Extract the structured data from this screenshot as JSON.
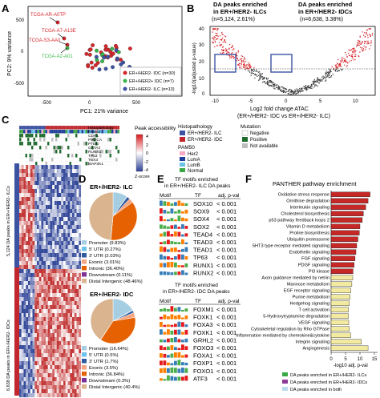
{
  "panel_letters": [
    "A",
    "B",
    "C",
    "D",
    "E",
    "F"
  ],
  "panelA": {
    "xlabel": "PC1: 21% variance",
    "ylabel": "PC2: 9% variance",
    "xticks": [
      "-500",
      "0",
      "500"
    ],
    "yticks": [
      "-500",
      "0",
      "500"
    ],
    "annotations": [
      "TCGA-AR-A0TP",
      "TCGA-A7-A13E",
      "TCGA-S3-AA0",
      "TCGA-A2-A01"
    ],
    "legend": [
      {
        "label": "ER+/HER2- IDC (n=30)",
        "color": "#d7262b"
      },
      {
        "label": "ER+/HER2+ IDC (n=7)",
        "color": "#3ab54a"
      },
      {
        "label": "ER+/HER2- ILC (n=13)",
        "color": "#3c52a3"
      }
    ]
  },
  "panelB": {
    "title": "DA peaks enriched",
    "sub_left": "in ER+/HER2- ILCs",
    "sub_right": "in ER+/HER2- IDCs",
    "count_left": "(n=5,124, 2.61%)",
    "count_right": "(n=6,638, 3.38%)",
    "ylabel": "-log10(adjusted p-value)",
    "xlabel1": "Log2 fold change ATAC",
    "xlabel2": "(ER+/HER2- IDC vs ER+/HER2- ILC)",
    "xticks": [
      "-10",
      "-5",
      "0",
      "5",
      "10"
    ],
    "yticks": [
      "0",
      "10",
      "20",
      "30",
      "40"
    ]
  },
  "panelC": {
    "annotation_rows": [
      "Histopathology",
      "PAM50",
      "CDH1",
      "PIK3CA",
      "PTEN",
      "GATA3",
      "RUNX1",
      "TP53",
      "TBX3",
      "MAP3K1"
    ],
    "colorbar_title": "Peak accessibility",
    "colorbar_ticks": [
      "4",
      "2",
      "0",
      "-2",
      "-4"
    ],
    "colorbar_label": "Z-score",
    "legend_histo_title": "Histopathology",
    "legend_histo": [
      {
        "label": "ER+/HER2- ILC",
        "color": "#3c52a3"
      },
      {
        "label": "ER+/HER2- IDC",
        "color": "#c1272d"
      }
    ],
    "legend_pam_title": "PAM50",
    "legend_pam": [
      {
        "label": "Her2",
        "color": "#f9a8c5"
      },
      {
        "label": "LumA",
        "color": "#1f3f9a"
      },
      {
        "label": "LumB",
        "color": "#6bc3ea"
      },
      {
        "label": "Normal",
        "color": "#3aa845"
      }
    ],
    "legend_mut_title": "Mutation",
    "legend_mut": [
      {
        "label": "Negative",
        "color": "#ffffff"
      },
      {
        "label": "Positive",
        "color": "#1d6b2d"
      },
      {
        "label": "Not available",
        "color": "#bdbdbd"
      }
    ],
    "side_label_top": "5,124 DA peaks in ER+/HER2- ILCs",
    "side_label_bottom": "6,638 DA peaks in ER+/HER2- IDCs"
  },
  "panelD": {
    "title_top": "ER+/HER2- ILC",
    "title_bottom": "ER+/HER2- IDC",
    "legend_top": [
      "Promoter (9.83%)",
      "5' UTR (0.27%)",
      "3' UTR (2.03%)",
      "Exonic (3.01%)",
      "Intronic (36.40%)",
      "Downstream (0.11%)",
      "Distal Intergenic (48.46%)"
    ],
    "legend_bottom": [
      "Promoter (16.64%)",
      "5' UTR (0.5%)",
      "3' UTR (1.7%)",
      "Exonic (3.5%)",
      "Intronic (36.84%)",
      "Downstream (0.3%)",
      "Distal Intergenic (40.4%)"
    ],
    "colors": [
      "#a6cee3",
      "#6ec1ea",
      "#2f5aa0",
      "#f4a582",
      "#e66101",
      "#7b3294",
      "#d9b48f"
    ]
  },
  "panelE": {
    "title_top": "TF motifs enriched",
    "title_top2": "in ER+/HER2- ILC DA peaks",
    "title_bottom": "TF motifs enriched",
    "title_bottom2": "in ER+/HER2- IDC DA peaks",
    "col_headers": [
      "Motif",
      "TF",
      "adj. p-val"
    ],
    "rows_top": [
      {
        "tf": "SOX10",
        "p": "< 0.001"
      },
      {
        "tf": "SOX9",
        "p": "< 0.001"
      },
      {
        "tf": "SOX4",
        "p": "< 0.001"
      },
      {
        "tf": "SOX2",
        "p": "< 0.001"
      },
      {
        "tf": "TEAD4",
        "p": "< 0.001"
      },
      {
        "tf": "TEAD3",
        "p": "< 0.001"
      },
      {
        "tf": "TEAD1",
        "p": "< 0.001"
      },
      {
        "tf": "TP63",
        "p": "< 0.001"
      },
      {
        "tf": "RUNX1",
        "p": "< 0.001"
      },
      {
        "tf": "RUNX2",
        "p": "< 0.001"
      }
    ],
    "rows_bottom": [
      {
        "tf": "FOXM1",
        "p": "< 0.001"
      },
      {
        "tf": "FOXK1",
        "p": "< 0.001"
      },
      {
        "tf": "FOXA3",
        "p": "< 0.001"
      },
      {
        "tf": "FOXK1",
        "p": "< 0.001"
      },
      {
        "tf": "GRHL2",
        "p": "< 0.001"
      },
      {
        "tf": "FOXO3",
        "p": "< 0.001"
      },
      {
        "tf": "FOXA1",
        "p": "< 0.001"
      },
      {
        "tf": "FOXP1",
        "p": "< 0.001"
      },
      {
        "tf": "FOXO1",
        "p": "< 0.001"
      },
      {
        "tf": "ATF3",
        "p": "< 0.001"
      }
    ]
  },
  "chart_data": {
    "type": "bar",
    "title": "PANTHER pathway enrichment",
    "xlabel": "-log10 adj. p-val",
    "xlim": [
      0,
      15
    ],
    "xticks": [
      "0",
      "5",
      "10",
      "15"
    ],
    "categories": [
      "Oxidative stress response",
      "Ornithine degradation",
      "Interleukin signaling",
      "Cholesterol biosynthesis",
      "p53 pathway feedback loops 2",
      "Vitamin D metabolism",
      "Proline biosynthesis",
      "Ubiquitin proteasome",
      "5HT3 type receptor mediated signaling",
      "Endothelin signaling",
      "FGF signaling",
      "PDGF signaling",
      "PI3 kinase",
      "Axon guidance mediated by netrin",
      "Mannose metabolism",
      "EGF receptor signaling",
      "Purine metabolism",
      "Hedgehog signaling",
      "T cell activation",
      "5-Hydroxytryptamine degradation",
      "VEGF signaling",
      "Cytoskeletal regulation by Rho GTPase",
      "Inflammation mediated by chemokine&cytokine",
      "Integrin signaling",
      "Angiogenesis"
    ],
    "series": [
      {
        "name": "DA peaks enriched in ER+/HER2- ILCs",
        "color": "#c62828",
        "values": [
          13.5,
          12.8,
          12.0,
          11.2,
          10.8,
          10.0,
          9.8,
          9.3,
          8.9,
          8.6,
          8.3,
          8.0,
          7.6,
          0,
          0,
          0,
          0,
          0,
          0,
          0,
          0,
          0,
          0,
          0,
          0
        ]
      },
      {
        "name": "DA peaks enriched in ER+/HER2- IDCs",
        "color": "#f3eaa2",
        "values": [
          0,
          0,
          0,
          0,
          0,
          0,
          0,
          0,
          0,
          0,
          0,
          0,
          0,
          7.5,
          7.2,
          6.8,
          6.6,
          6.3,
          6.0,
          6.0,
          6.1,
          6.3,
          6.8,
          10.5,
          12.8
        ]
      },
      {
        "name": "DA peaks enriched in both",
        "color": "#b9a3d2",
        "values": [
          0,
          0,
          0,
          0,
          0,
          0,
          0,
          0,
          0,
          0,
          0,
          0,
          0,
          0,
          0,
          0,
          0,
          0,
          0,
          0,
          0,
          0,
          0,
          0,
          0
        ]
      }
    ],
    "legend": [
      "DA peaks enriched in ER+/HER2- ILCs",
      "DA peaks enriched in ER+/HER2- IDCs",
      "DA peaks enriched in both"
    ]
  }
}
